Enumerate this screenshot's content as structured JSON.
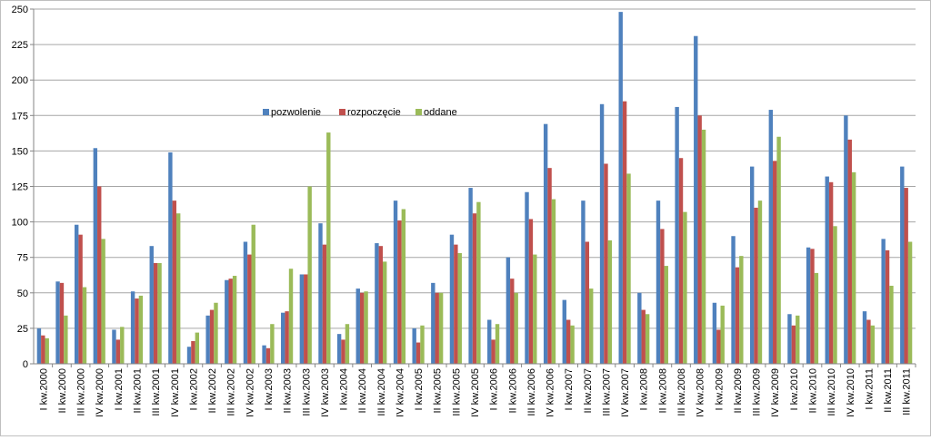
{
  "chart_data": {
    "type": "bar",
    "title": "",
    "xlabel": "",
    "ylabel": "",
    "ylim": [
      0,
      250
    ],
    "yticks": [
      0,
      25,
      50,
      75,
      100,
      125,
      150,
      175,
      200,
      225,
      250
    ],
    "grid": true,
    "legend_position": "center-left-inside",
    "categories": [
      "I kw.2000",
      "II kw.2000",
      "III kw.2000",
      "IV kw.2000",
      "I kw.2001",
      "II kw.2001",
      "III kw.2001",
      "IV kw.2001",
      "I kw.2002",
      "II kw.2002",
      "III kw.2002",
      "IV kw.2002",
      "I kw.2003",
      "II kw.2003",
      "III kw.2003",
      "IV kw.2003",
      "I kw.2004",
      "II kw.2004",
      "III kw.2004",
      "IV kw.2004",
      "I kw.2005",
      "II kw.2005",
      "III kw.2005",
      "IV kw.2005",
      "I kw.2006",
      "II kw.2006",
      "III kw.2006",
      "IV kw.2006",
      "I kw.2007",
      "II kw.2007",
      "III kw.2007",
      "IV kw.2007",
      "I kw.2008",
      "II kw.2008",
      "III kw.2008",
      "IV kw.2008",
      "I kw.2009",
      "II kw.2009",
      "III kw.2009",
      "IV kw.2009",
      "I kw.2010",
      "II kw.2010",
      "III kw.2010",
      "IV kw.2010",
      "I kw.2011",
      "II kw.2011",
      "III kw.2011"
    ],
    "series": [
      {
        "name": "pozwolenie",
        "color": "#4f81bd",
        "values": [
          25,
          58,
          98,
          152,
          24,
          51,
          83,
          149,
          12,
          34,
          59,
          86,
          13,
          36,
          63,
          99,
          21,
          53,
          85,
          115,
          25,
          57,
          91,
          124,
          31,
          75,
          121,
          169,
          45,
          115,
          183,
          248,
          50,
          115,
          181,
          231,
          43,
          90,
          139,
          179,
          35,
          82,
          132,
          175,
          37,
          88,
          139
        ]
      },
      {
        "name": "rozpoczęcie",
        "color": "#c0504d",
        "values": [
          20,
          57,
          91,
          125,
          17,
          46,
          71,
          115,
          16,
          38,
          60,
          77,
          11,
          37,
          63,
          84,
          17,
          50,
          83,
          101,
          15,
          50,
          84,
          106,
          17,
          60,
          102,
          138,
          31,
          86,
          141,
          185,
          38,
          95,
          145,
          175,
          24,
          68,
          110,
          143,
          27,
          81,
          128,
          158,
          31,
          80,
          124
        ]
      },
      {
        "name": "oddane",
        "color": "#9bbb59",
        "values": [
          18,
          34,
          54,
          88,
          26,
          48,
          71,
          106,
          22,
          43,
          62,
          98,
          28,
          67,
          125,
          163,
          28,
          51,
          72,
          109,
          27,
          50,
          78,
          114,
          28,
          50,
          77,
          116,
          27,
          53,
          87,
          134,
          35,
          69,
          107,
          165,
          41,
          76,
          115,
          160,
          34,
          64,
          97,
          135,
          27,
          55,
          86
        ]
      }
    ]
  }
}
